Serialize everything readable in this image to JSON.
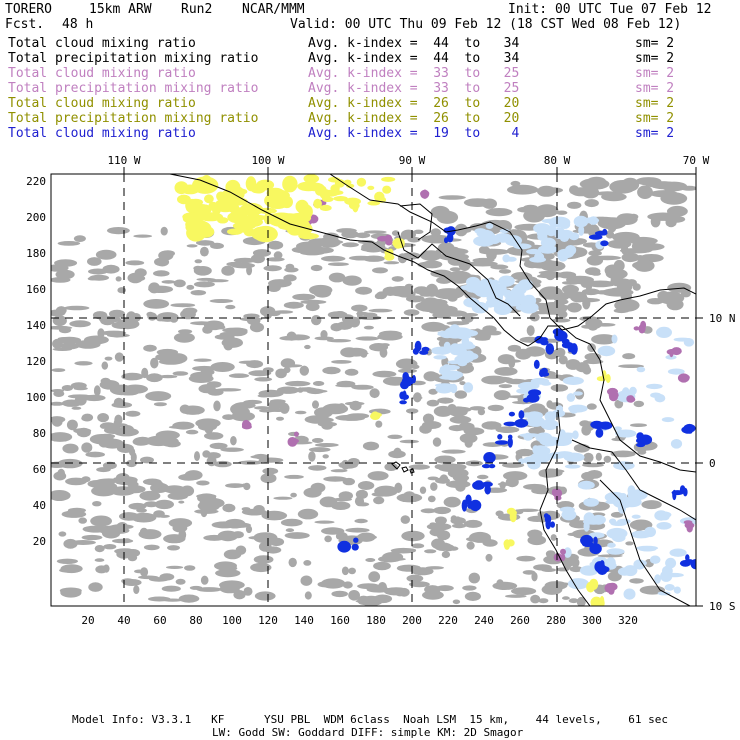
{
  "header": {
    "model": "TORERO",
    "resolution": "15km ARW",
    "run": "Run2",
    "org": "NCAR/MMM",
    "init": "Init: 00 UTC Tue 07 Feb 12",
    "fcst_label": "Fcst.",
    "fcst_value": "48 h",
    "valid": "Valid: 00 UTC Thu 09 Feb 12 (18 CST Wed 08 Feb 12)"
  },
  "legend": [
    {
      "label": "Total cloud mixing ratio",
      "range": "Avg. k-index =  44  to   34",
      "sm": "sm= 2",
      "color": "#000000"
    },
    {
      "label": "Total precipitation mixing ratio",
      "range": "Avg. k-index =  44  to   34",
      "sm": "sm= 2",
      "color": "#000000"
    },
    {
      "label": "Total cloud mixing ratio",
      "range": "Avg. k-index =  33  to   25",
      "sm": "sm= 2",
      "color": "#c080c0"
    },
    {
      "label": "Total precipitation mixing ratio",
      "range": "Avg. k-index =  33  to   25",
      "sm": "sm= 2",
      "color": "#c080c0"
    },
    {
      "label": "Total cloud mixing ratio",
      "range": "Avg. k-index =  26  to   20",
      "sm": "sm= 2",
      "color": "#909000"
    },
    {
      "label": "Total precipitation mixing ratio",
      "range": "Avg. k-index =  26  to   20",
      "sm": "sm= 2",
      "color": "#909000"
    },
    {
      "label": "Total cloud mixing ratio",
      "range": "Avg. k-index =  19  to    4",
      "sm": "sm= 2",
      "color": "#2020d0"
    }
  ],
  "map": {
    "lon_labels": [
      "110 W",
      "100 W",
      "90 W",
      "80 W",
      "70 W"
    ],
    "lat_labels": [
      "10 N",
      "0",
      "10 S"
    ],
    "y_ticks": [
      "220",
      "200",
      "180",
      "160",
      "140",
      "120",
      "100",
      "80",
      "60",
      "40",
      "20"
    ],
    "x_ticks": [
      "20",
      "40",
      "60",
      "80",
      "100",
      "120",
      "140",
      "160",
      "180",
      "200",
      "220",
      "240",
      "260",
      "280",
      "300",
      "320"
    ]
  },
  "footer": {
    "line1": "Model Info: V3.3.1   KF      YSU PBL  WDM 6class  Noah LSM  15 km,    44 levels,    61 sec",
    "line2": "LW: Godd SW: Goddard DIFF: simple KM: 2D Smagor"
  },
  "colors": {
    "gray_cloud": "#a8a8a8",
    "light_blue": "#c8e0f8",
    "blue": "#1030e0",
    "purple": "#b070b0",
    "yellow": "#f8f860"
  }
}
